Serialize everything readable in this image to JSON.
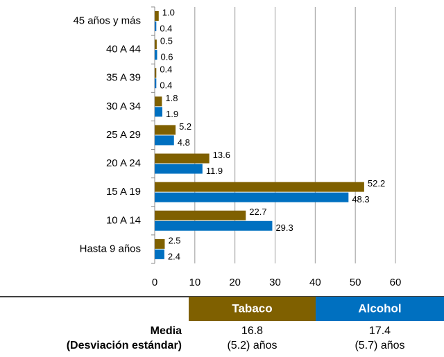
{
  "chart_data": {
    "type": "bar",
    "orientation": "horizontal",
    "categories": [
      "45 años y más",
      "40 A 44",
      "35 A 39",
      "30 A 34",
      "25 A 29",
      "20 A 24",
      "15 A 19",
      "10 A 14",
      "Hasta 9 años"
    ],
    "series": [
      {
        "name": "Tabaco",
        "color": "#7f6000",
        "values": [
          1.0,
          0.5,
          0.4,
          1.8,
          5.2,
          13.6,
          52.2,
          22.7,
          2.5
        ],
        "value_labels": [
          "1.0",
          "0.5",
          "0.4",
          "1.8",
          "5.2",
          "13.6",
          "52.2",
          "22.7",
          "2.5"
        ]
      },
      {
        "name": "Alcohol",
        "color": "#0070c0",
        "values": [
          0.4,
          0.6,
          0.4,
          1.9,
          4.8,
          11.9,
          48.3,
          29.3,
          2.4
        ],
        "value_labels": [
          "0.4",
          "0.6",
          "0.4",
          "1.9",
          "4.8",
          "11.9",
          "48.3",
          "29.3",
          "2.4"
        ]
      }
    ],
    "xlim": [
      0,
      60
    ],
    "xticks": [
      0,
      10,
      20,
      30,
      40,
      50,
      60
    ],
    "grid": true
  },
  "table": {
    "rows": [
      [
        "Media",
        "16.8",
        "17.4"
      ],
      [
        "(Desviación estándar)",
        "(5.2) años",
        "(5.7) años"
      ]
    ]
  }
}
